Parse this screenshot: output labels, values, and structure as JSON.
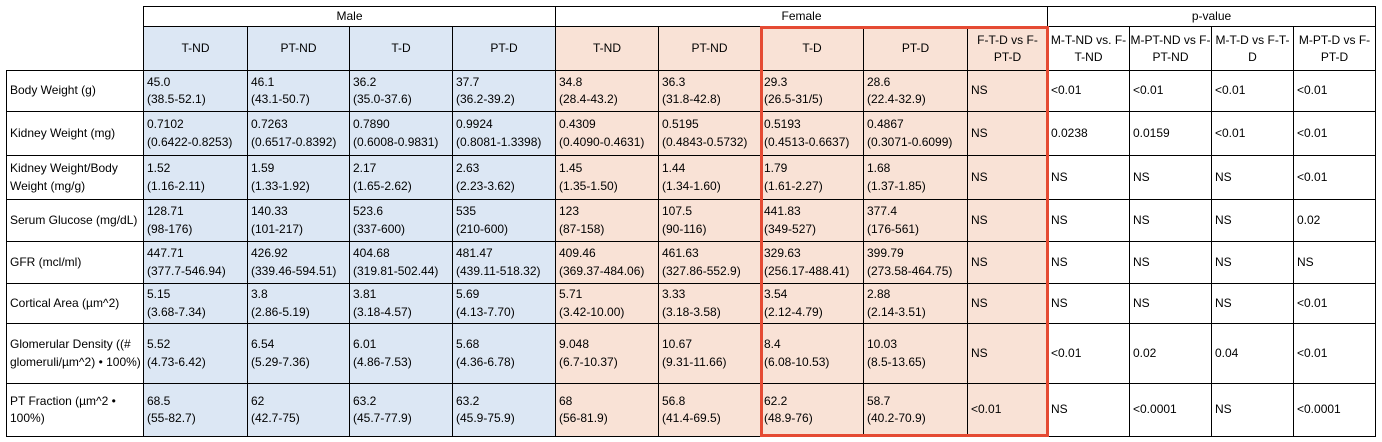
{
  "groups": {
    "male": "Male",
    "female": "Female",
    "pvalue": "p-value"
  },
  "columns": {
    "male": [
      "T-ND",
      "PT-ND",
      "T-D",
      "PT-D"
    ],
    "female": [
      "T-ND",
      "PT-ND",
      "T-D",
      "PT-D",
      "F-T-D vs F-PT-D"
    ],
    "pvalue": [
      "M-T-ND vs. F-T-ND",
      "M-PT-ND vs F-PT-ND",
      "M-T-D vs F-T-D",
      "M-PT-D vs F-PT-D"
    ]
  },
  "colors": {
    "male_fill": "#dce7f4",
    "female_fill": "#f9e2d6",
    "highlight": "#e54a33"
  },
  "rows": [
    {
      "label": "Body Weight (g)",
      "male": [
        [
          "45.0",
          "(38.5-52.1)"
        ],
        [
          "46.1",
          "(43.1-50.7)"
        ],
        [
          "36.2",
          "(35.0-37.6)"
        ],
        [
          "37.7",
          "(36.2-39.2)"
        ]
      ],
      "female": [
        [
          "34.8",
          "(28.4-43.2)"
        ],
        [
          "36.3",
          "(31.8-42.8)"
        ],
        [
          "29.3",
          "(26.5-31/5)"
        ],
        [
          "28.6",
          "(22.4-32.9)"
        ]
      ],
      "ftd": "NS",
      "pvalues": [
        "<0.01",
        "<0.01",
        "<0.01",
        "<0.01"
      ]
    },
    {
      "label": "Kidney Weight (mg)",
      "male": [
        [
          "0.7102",
          "(0.6422-0.8253)"
        ],
        [
          "0.7263",
          "(0.6517-0.8392)"
        ],
        [
          "0.7890",
          "(0.6008-0.9831)"
        ],
        [
          "0.9924",
          "(0.8081-1.3398)"
        ]
      ],
      "female": [
        [
          "0.4309",
          "(0.4090-0.4631)"
        ],
        [
          "0.5195",
          "(0.4843-0.5732)"
        ],
        [
          "0.5193",
          "(0.4513-0.6637)"
        ],
        [
          "0.4867",
          "(0.3071-0.6099)"
        ]
      ],
      "ftd": "NS",
      "pvalues": [
        "0.0238",
        "0.0159",
        "<0.01",
        "<0.01"
      ]
    },
    {
      "label": "Kidney Weight/Body Weight (mg/g)",
      "male": [
        [
          "1.52",
          "(1.16-2.11)"
        ],
        [
          "1.59",
          "(1.33-1.92)"
        ],
        [
          "2.17",
          "(1.65-2.62)"
        ],
        [
          "2.63",
          "(2.23-3.62)"
        ]
      ],
      "female": [
        [
          "1.45",
          "(1.35-1.50)"
        ],
        [
          "1.44",
          "(1.34-1.60)"
        ],
        [
          "1.79",
          "(1.61-2.27)"
        ],
        [
          "1.68",
          "(1.37-1.85)"
        ]
      ],
      "ftd": "NS",
      "pvalues": [
        "NS",
        "NS",
        "NS",
        "<0.01"
      ]
    },
    {
      "label": "Serum Glucose (mg/dL)",
      "male": [
        [
          "128.71",
          "(98-176)"
        ],
        [
          "140.33",
          "(101-217)"
        ],
        [
          "523.6",
          "(337-600)"
        ],
        [
          "535",
          "(210-600)"
        ]
      ],
      "female": [
        [
          "123",
          "(87-158)"
        ],
        [
          "107.5",
          "(90-116)"
        ],
        [
          "441.83",
          "(349-527)"
        ],
        [
          "377.4",
          "(176-561)"
        ]
      ],
      "ftd": "NS",
      "pvalues": [
        "NS",
        "NS",
        "NS",
        "0.02"
      ]
    },
    {
      "label": "GFR (mcl/ml)",
      "male": [
        [
          "447.71",
          "(377.7-546.94)"
        ],
        [
          "426.92",
          "(339.46-594.51)"
        ],
        [
          "404.68",
          "(319.81-502.44)"
        ],
        [
          "481.47",
          "(439.11-518.32)"
        ]
      ],
      "female": [
        [
          "409.46",
          "(369.37-484.06)"
        ],
        [
          "461.63",
          "(327.86-552.9)"
        ],
        [
          "329.63",
          "(256.17-488.41)"
        ],
        [
          "399.79",
          "(273.58-464.75)"
        ]
      ],
      "ftd": "NS",
      "pvalues": [
        "NS",
        "NS",
        "NS",
        "NS"
      ]
    },
    {
      "label": "Cortical Area (µm^2)",
      "male": [
        [
          "5.15",
          "(3.68-7.34)"
        ],
        [
          "3.8",
          "(2.86-5.19)"
        ],
        [
          "3.81",
          "(3.18-4.57)"
        ],
        [
          "5.69",
          "(4.13-7.70)"
        ]
      ],
      "female": [
        [
          "5.71",
          "(3.42-10.00)"
        ],
        [
          "3.33",
          "(3.18-3.58)"
        ],
        [
          "3.54",
          "(2.12-4.79)"
        ],
        [
          "2.88",
          "(2.14-3.51)"
        ]
      ],
      "ftd": "NS",
      "pvalues": [
        "NS",
        "NS",
        "NS",
        "<0.01"
      ]
    },
    {
      "label": "Glomerular Density ((# glomeruli/µm^2) • 100%)",
      "male": [
        [
          "5.52",
          "(4.73-6.42)"
        ],
        [
          "6.54",
          "(5.29-7.36)"
        ],
        [
          "6.01",
          "(4.86-7.53)"
        ],
        [
          "5.68",
          "(4.36-6.78)"
        ]
      ],
      "female": [
        [
          "9.048",
          "(6.7-10.37)"
        ],
        [
          "10.67",
          "(9.31-11.66)"
        ],
        [
          "8.4",
          "(6.08-10.53)"
        ],
        [
          "10.03",
          "(8.5-13.65)"
        ]
      ],
      "ftd": "NS",
      "pvalues": [
        "<0.01",
        "0.02",
        "0.04",
        "<0.01"
      ]
    },
    {
      "label": " PT Fraction (µm^2 • 100%)",
      "male": [
        [
          "68.5",
          "(55-82.7)"
        ],
        [
          "62",
          "(42.7-75)"
        ],
        [
          "63.2",
          "(45.7-77.9)"
        ],
        [
          "63.2",
          "(45.9-75.9)"
        ]
      ],
      "female": [
        [
          "68",
          " (56-81.9)"
        ],
        [
          "56.8",
          "(41.4-69.5)"
        ],
        [
          "62.2",
          "(48.9-76)"
        ],
        [
          "58.7",
          "(40.2-70.9)"
        ]
      ],
      "ftd": "<0.01",
      "pvalues": [
        "NS",
        "<0.0001",
        "NS",
        "<0.0001"
      ]
    }
  ]
}
